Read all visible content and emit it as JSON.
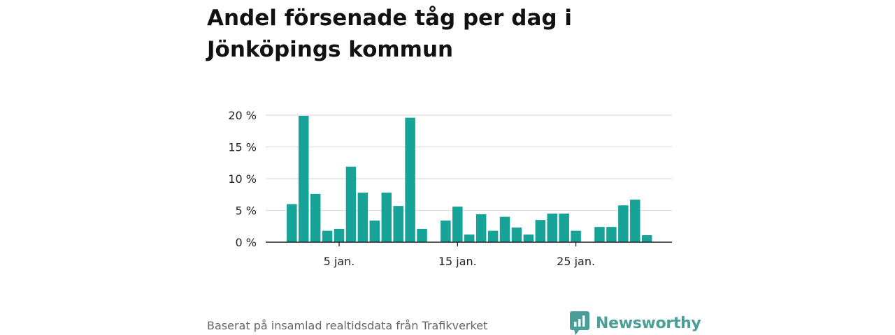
{
  "title": "Andel försenade tåg per dag i Jönköpings kommun",
  "source": "Baserat på insamlad realtidsdata från Trafikverket",
  "brand": {
    "name": "Newsworthy",
    "icon": "bar-chart-speech-bubble-icon",
    "color": "#4a9e9a"
  },
  "colors": {
    "bar": "#17a398",
    "grid": "#dddddd",
    "axis": "#222222"
  },
  "chart_data": {
    "type": "bar",
    "title": "Andel försenade tåg per dag i Jönköpings kommun",
    "xlabel": "",
    "ylabel": "",
    "unit": "%",
    "ylim": [
      0,
      20
    ],
    "grid": true,
    "y_ticks": [
      {
        "value": 0,
        "label": "0 %"
      },
      {
        "value": 5,
        "label": "5 %"
      },
      {
        "value": 10,
        "label": "10 %"
      },
      {
        "value": 15,
        "label": "15 %"
      },
      {
        "value": 20,
        "label": "20 %"
      }
    ],
    "x_ticks": [
      {
        "day": 5,
        "label": "5 jan."
      },
      {
        "day": 15,
        "label": "15 jan."
      },
      {
        "day": 25,
        "label": "25 jan."
      }
    ],
    "categories": [
      1,
      2,
      3,
      4,
      5,
      6,
      7,
      8,
      9,
      10,
      11,
      12,
      13,
      14,
      15,
      16,
      17,
      18,
      19,
      20,
      21,
      22,
      23,
      24,
      25,
      26,
      27,
      28,
      29,
      30,
      31
    ],
    "values": [
      6.0,
      19.9,
      7.6,
      1.8,
      2.1,
      11.9,
      7.8,
      3.4,
      7.8,
      5.7,
      19.6,
      2.1,
      null,
      3.4,
      5.6,
      1.2,
      4.4,
      1.8,
      4.0,
      2.3,
      1.2,
      3.5,
      4.5,
      4.5,
      1.8,
      null,
      2.4,
      2.4,
      5.8,
      6.7,
      1.1
    ]
  }
}
